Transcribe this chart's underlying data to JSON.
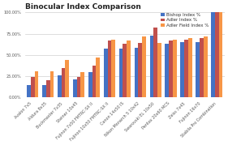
{
  "title": "Binocular Index Comparison",
  "categories": [
    "Avalon 7x5",
    "Aldura 8x35",
    "Buckmaster 7x35",
    "Steiner 10x45",
    "Fujinon 7x50 FMTRC-SX II",
    "Fujinon 10x50 FMTRC-SX II",
    "Canon 14x50 IS",
    "Nikon Monarch 5 10x42",
    "Swarovski EL 10x50",
    "Pentax 20x60 MCS",
    "Zeiss 7x45",
    "Fujinon 16x70",
    "Stabila Pro Combination"
  ],
  "series": [
    {
      "name": "Bishop Index %",
      "color": "#4472C4",
      "values": [
        15.0,
        15.0,
        26.0,
        21.0,
        30.0,
        57.0,
        57.0,
        58.0,
        73.0,
        63.0,
        65.0,
        65.0,
        100.0
      ]
    },
    {
      "name": "Adler Index %",
      "color": "#C0504D",
      "values": [
        24.0,
        20.0,
        35.0,
        24.0,
        37.0,
        67.0,
        63.0,
        64.0,
        82.0,
        67.0,
        68.0,
        70.0,
        100.0
      ]
    },
    {
      "name": "Adler Field Index %",
      "color": "#F79646",
      "values": [
        31.0,
        31.0,
        44.0,
        30.0,
        47.0,
        68.0,
        67.0,
        72.0,
        64.0,
        68.0,
        70.0,
        72.0,
        100.0
      ]
    }
  ],
  "ylim": [
    0,
    100
  ],
  "ytick_values": [
    0,
    25,
    50,
    75,
    100
  ],
  "background_color": "#ffffff",
  "grid_color": "#d0d0d0",
  "title_fontsize": 6.5,
  "tick_fontsize": 3.5,
  "legend_fontsize": 4.0,
  "bar_width": 0.25
}
